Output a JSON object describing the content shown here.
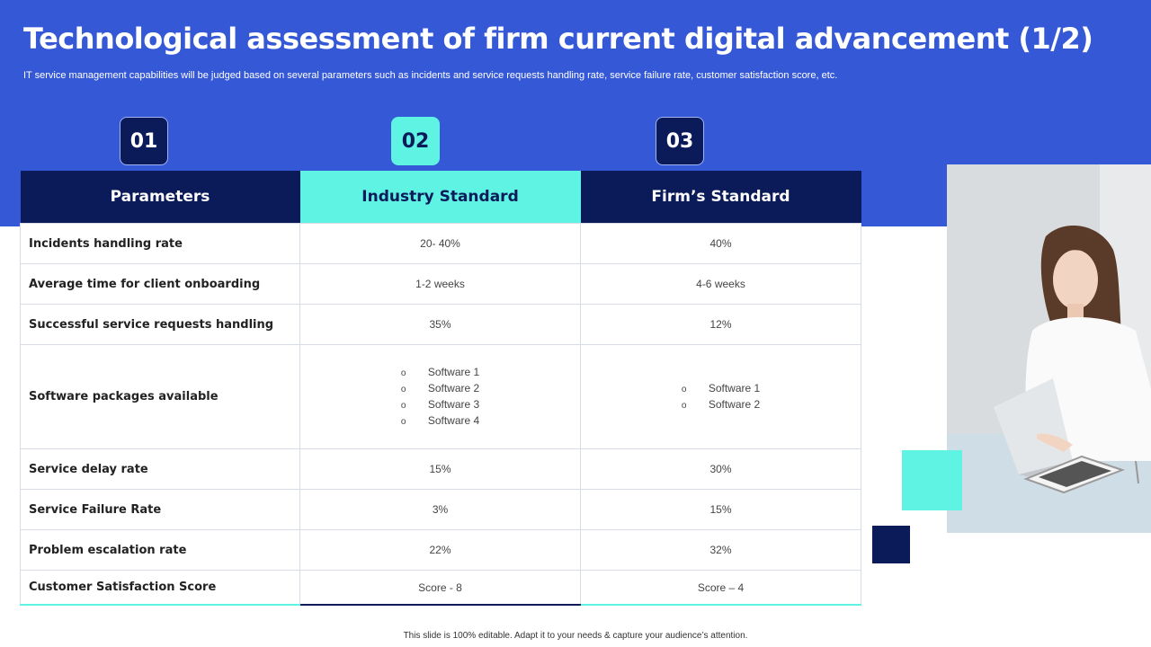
{
  "title": "Technological assessment of firm current digital advancement (1/2)",
  "subtitle": "IT service management capabilities will be judged based on several parameters such as incidents and service requests handling rate, service failure rate, customer satisfaction score, etc.",
  "badges": [
    "01",
    "02",
    "03"
  ],
  "table": {
    "headers": [
      "Parameters",
      "Industry Standard",
      "Firm’s Standard"
    ],
    "rows": [
      {
        "param": "Incidents handling rate",
        "industry": "20- 40%",
        "firm": "40%"
      },
      {
        "param": "Average time for client onboarding",
        "industry": "1-2 weeks",
        "firm": "4-6 weeks"
      },
      {
        "param": "Successful service requests handling",
        "industry": "35%",
        "firm": "12%"
      },
      {
        "param": "Software packages available",
        "industry_list": [
          "Software  1",
          "Software  2",
          "Software  3",
          "Software  4"
        ],
        "firm_list": [
          "Software  1",
          "Software  2"
        ]
      },
      {
        "param": "Service delay rate",
        "industry": "15%",
        "firm": "30%"
      },
      {
        "param": "Service Failure Rate",
        "industry": "3%",
        "firm": "15%"
      },
      {
        "param": "Problem escalation rate",
        "industry": "22%",
        "firm": "32%"
      },
      {
        "param": "Customer Satisfaction Score",
        "industry": "Score - 8",
        "firm": "Score – 4"
      }
    ]
  },
  "bullet_glyph": "o",
  "footer": "This slide is 100% editable.  Adapt it to your needs & capture your audience’s attention.",
  "colors": {
    "blue_band": "#3558d6",
    "navy": "#0b1a58",
    "teal": "#5ff3e3"
  }
}
